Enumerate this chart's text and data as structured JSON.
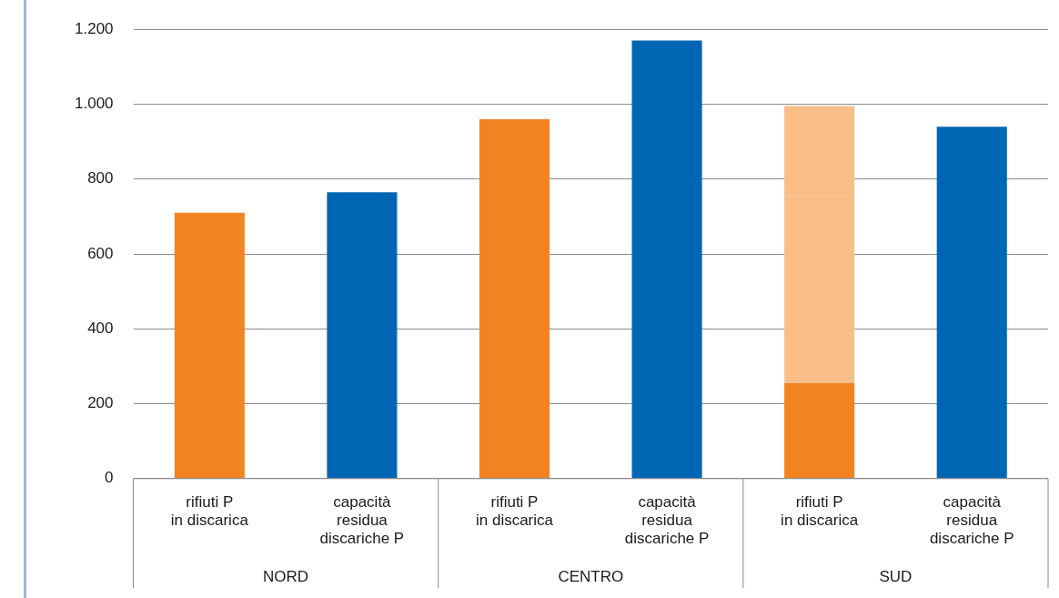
{
  "chart_data": {
    "type": "bar",
    "stacked": true,
    "categories": [
      "rifiuti P\nin discarica",
      "capacità\nresidua\ndiscariche P",
      "rifiuti P\nin discarica",
      "capacità\nresidua\ndiscariche P",
      "rifiuti P\nin discarica",
      "capacità\nresidua\ndiscariche P"
    ],
    "series": [
      {
        "colors": [
          "#f38321",
          "#0066b3",
          "#f38321",
          "#0066b3",
          "#f38321",
          "#0066b3"
        ],
        "values": [
          710,
          765,
          960,
          1170,
          255,
          940
        ]
      },
      {
        "color": "#f9bd87",
        "values": [
          null,
          null,
          null,
          null,
          250,
          null
        ]
      },
      {
        "color": "#f9bd87",
        "values": [
          null,
          null,
          null,
          null,
          250,
          null
        ]
      },
      {
        "color": "#f9bd87",
        "values": [
          null,
          null,
          null,
          null,
          240,
          null
        ]
      }
    ],
    "annotations": [
      "NORD",
      "CENTRO",
      "SUD"
    ],
    "ylim": [
      0,
      1200
    ],
    "yticks": [
      0,
      200,
      400,
      600,
      800,
      {
        "value": 1000,
        "label": "1.000"
      },
      {
        "value": 1200,
        "label": "1.200"
      }
    ],
    "grid": "y",
    "legend": false
  }
}
